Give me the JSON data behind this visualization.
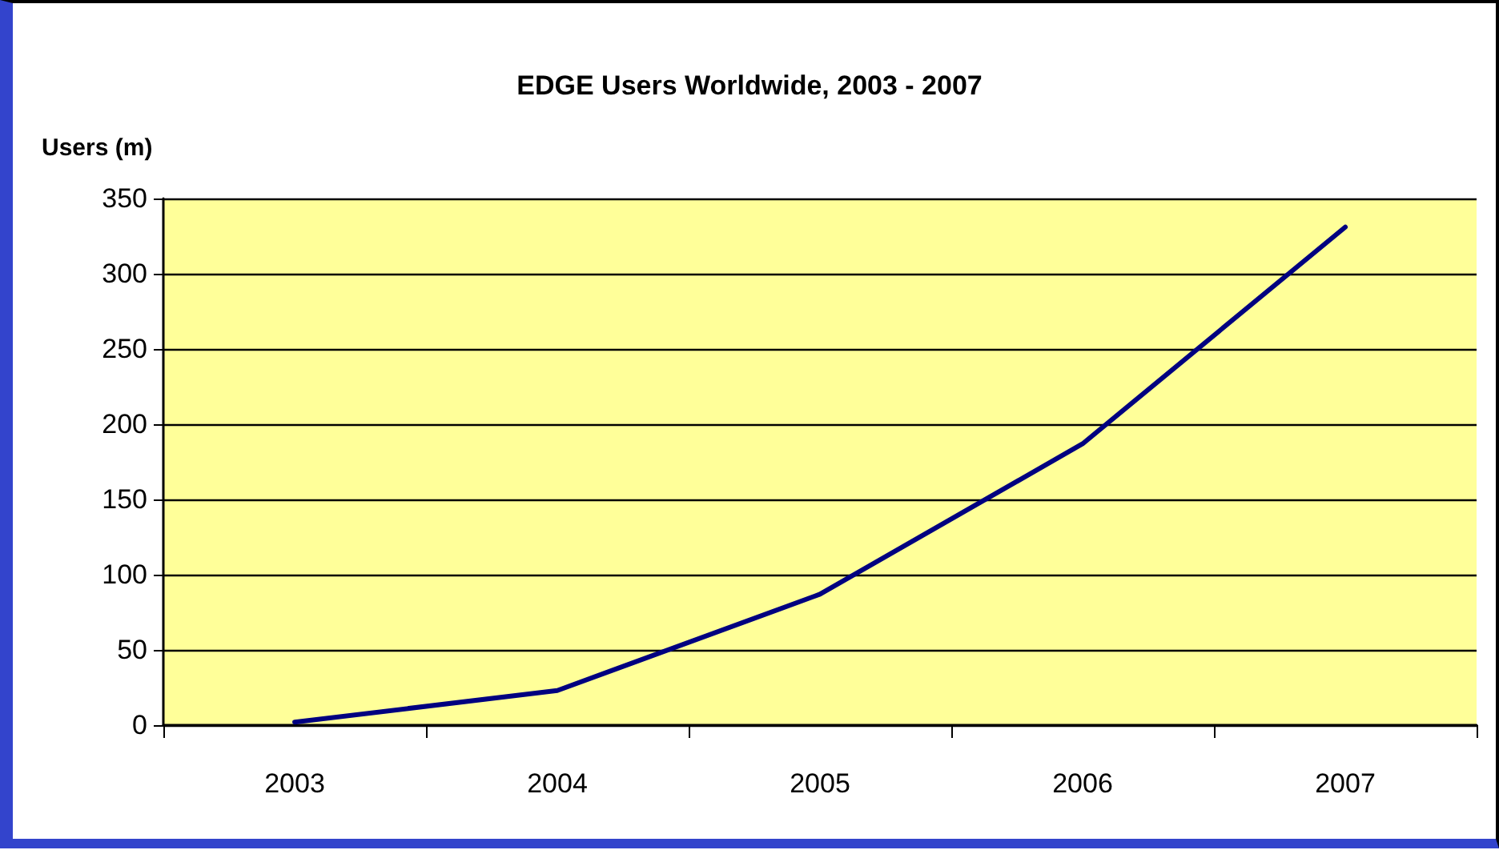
{
  "chart_data": {
    "type": "line",
    "title": "EDGE Users Worldwide, 2003 - 2007",
    "ylabel": "Users (m)",
    "categories": [
      "2003",
      "2004",
      "2005",
      "2006",
      "2007"
    ],
    "series": [
      {
        "color": "#000080",
        "values": [
          2,
          23,
          87,
          187,
          331
        ]
      }
    ],
    "ylim": [
      0,
      350
    ],
    "yticks": [
      0,
      50,
      100,
      150,
      200,
      250,
      300,
      350
    ],
    "grid": "y",
    "marker": "none",
    "line_style": "solid"
  }
}
